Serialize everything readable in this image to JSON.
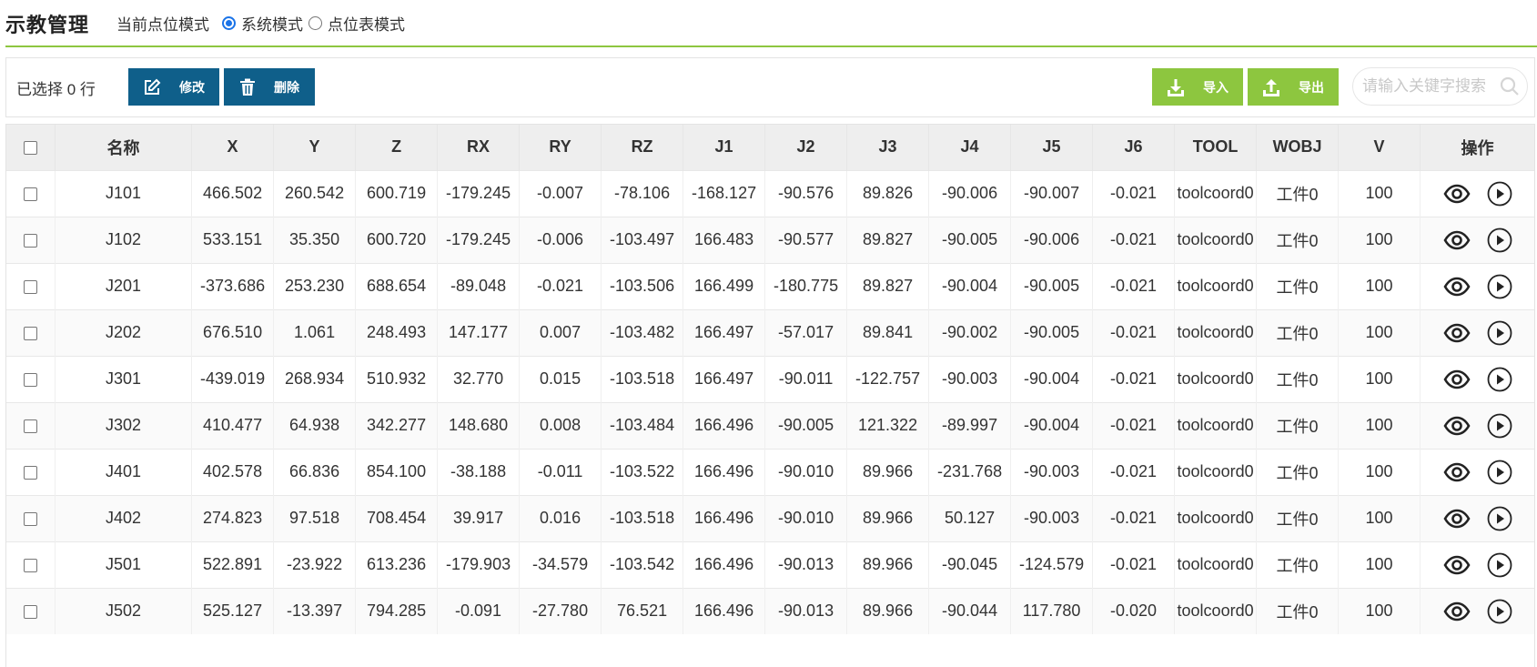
{
  "header": {
    "title": "示教管理",
    "mode_label": "当前点位模式",
    "modes": [
      {
        "label": "系统模式",
        "checked": true
      },
      {
        "label": "点位表模式",
        "checked": false
      }
    ]
  },
  "toolbar": {
    "selected_text": "已选择 0 行",
    "edit_label": "修改",
    "delete_label": "删除",
    "import_label": "导入",
    "export_label": "导出",
    "search_placeholder": "请输入关键字搜索",
    "edit_icon": "edit-icon",
    "delete_icon": "trash-icon",
    "import_icon": "download-icon",
    "export_icon": "upload-icon",
    "search_icon": "search-icon"
  },
  "colors": {
    "primary": "#0f5f8a",
    "accent": "#8dc63f",
    "radio": "#1a73e8"
  },
  "table": {
    "columns": [
      "名称",
      "X",
      "Y",
      "Z",
      "RX",
      "RY",
      "RZ",
      "J1",
      "J2",
      "J3",
      "J4",
      "J5",
      "J6",
      "TOOL",
      "WOBJ",
      "V",
      "操作"
    ],
    "action_icons": [
      "eye-icon",
      "play-icon"
    ],
    "rows": [
      [
        "J101",
        "466.502",
        "260.542",
        "600.719",
        "-179.245",
        "-0.007",
        "-78.106",
        "-168.127",
        "-90.576",
        "89.826",
        "-90.006",
        "-90.007",
        "-0.021",
        "toolcoord0",
        "工件0",
        "100"
      ],
      [
        "J102",
        "533.151",
        "35.350",
        "600.720",
        "-179.245",
        "-0.006",
        "-103.497",
        "166.483",
        "-90.577",
        "89.827",
        "-90.005",
        "-90.006",
        "-0.021",
        "toolcoord0",
        "工件0",
        "100"
      ],
      [
        "J201",
        "-373.686",
        "253.230",
        "688.654",
        "-89.048",
        "-0.021",
        "-103.506",
        "166.499",
        "-180.775",
        "89.827",
        "-90.004",
        "-90.005",
        "-0.021",
        "toolcoord0",
        "工件0",
        "100"
      ],
      [
        "J202",
        "676.510",
        "1.061",
        "248.493",
        "147.177",
        "0.007",
        "-103.482",
        "166.497",
        "-57.017",
        "89.841",
        "-90.002",
        "-90.005",
        "-0.021",
        "toolcoord0",
        "工件0",
        "100"
      ],
      [
        "J301",
        "-439.019",
        "268.934",
        "510.932",
        "32.770",
        "0.015",
        "-103.518",
        "166.497",
        "-90.011",
        "-122.757",
        "-90.003",
        "-90.004",
        "-0.021",
        "toolcoord0",
        "工件0",
        "100"
      ],
      [
        "J302",
        "410.477",
        "64.938",
        "342.277",
        "148.680",
        "0.008",
        "-103.484",
        "166.496",
        "-90.005",
        "121.322",
        "-89.997",
        "-90.004",
        "-0.021",
        "toolcoord0",
        "工件0",
        "100"
      ],
      [
        "J401",
        "402.578",
        "66.836",
        "854.100",
        "-38.188",
        "-0.011",
        "-103.522",
        "166.496",
        "-90.010",
        "89.966",
        "-231.768",
        "-90.003",
        "-0.021",
        "toolcoord0",
        "工件0",
        "100"
      ],
      [
        "J402",
        "274.823",
        "97.518",
        "708.454",
        "39.917",
        "0.016",
        "-103.518",
        "166.496",
        "-90.010",
        "89.966",
        "50.127",
        "-90.003",
        "-0.021",
        "toolcoord0",
        "工件0",
        "100"
      ],
      [
        "J501",
        "522.891",
        "-23.922",
        "613.236",
        "-179.903",
        "-34.579",
        "-103.542",
        "166.496",
        "-90.013",
        "89.966",
        "-90.045",
        "-124.579",
        "-0.021",
        "toolcoord0",
        "工件0",
        "100"
      ],
      [
        "J502",
        "525.127",
        "-13.397",
        "794.285",
        "-0.091",
        "-27.780",
        "76.521",
        "166.496",
        "-90.013",
        "89.966",
        "-90.044",
        "117.780",
        "-0.020",
        "toolcoord0",
        "工件0",
        "100"
      ]
    ]
  }
}
